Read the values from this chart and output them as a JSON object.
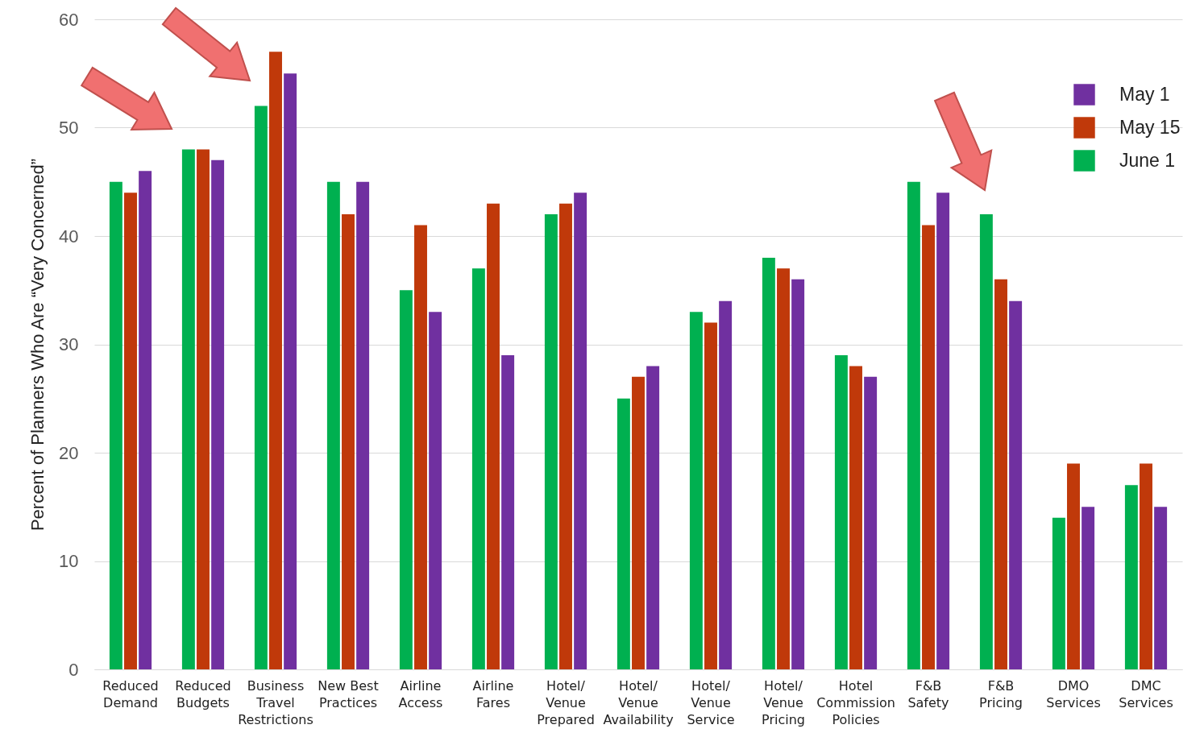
{
  "chart_data": {
    "type": "bar",
    "ylabel": "Percent of Planners Who Are “Very Concerned”",
    "categories": [
      "Reduced\nDemand",
      "Reduced\nBudgets",
      "Business\nTravel\nRestrictions",
      "New Best\nPractices",
      "Airline\nAccess",
      "Airline\nFares",
      "Hotel/\nVenue\nPrepared",
      "Hotel/\nVenue\nAvailability",
      "Hotel/\nVenue\nService",
      "Hotel/\nVenue\nPricing",
      "Hotel\nCommission\nPolicies",
      "F&B\nSafety",
      "F&B\nPricing",
      "DMO\nServices",
      "DMC\nServices"
    ],
    "series": [
      {
        "name": "May 1",
        "color": "#7030a0",
        "values": [
          46,
          47,
          55,
          45,
          33,
          29,
          44,
          28,
          34,
          36,
          27,
          44,
          34,
          15,
          15
        ]
      },
      {
        "name": "May 15",
        "color": "#c0390a",
        "values": [
          44,
          48,
          57,
          42,
          41,
          43,
          43,
          27,
          32,
          37,
          28,
          41,
          36,
          19,
          19
        ]
      },
      {
        "name": "June 1",
        "color": "#00b050",
        "values": [
          45,
          48,
          52,
          45,
          35,
          37,
          42,
          25,
          33,
          38,
          29,
          45,
          42,
          14,
          17
        ]
      }
    ],
    "ylim": [
      0,
      60
    ],
    "yticks": [
      0,
      10,
      20,
      30,
      40,
      50,
      60
    ],
    "grid": "y",
    "legend": "top right"
  }
}
